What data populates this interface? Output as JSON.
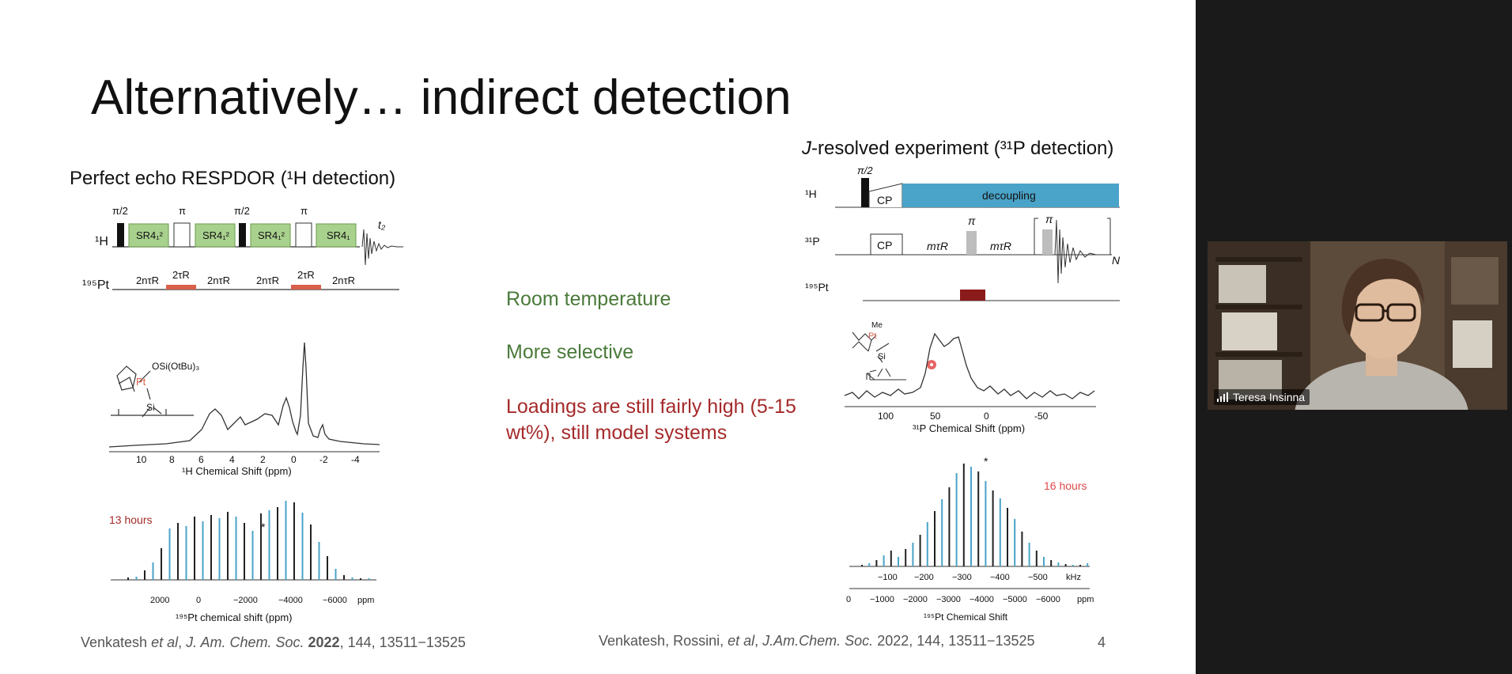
{
  "slide": {
    "title": "Alternatively… indirect detection",
    "left": {
      "heading": "Perfect echo RESPDOR (¹H detection)",
      "pulse_seq": {
        "labels_top": [
          "π/2",
          "π",
          "π/2",
          "π"
        ],
        "blocks": [
          "SR4₁²",
          "SR4₁²",
          "SR4₁²",
          "SR4₁"
        ],
        "t2": "t₂",
        "h_label": "¹H",
        "pt_label": "¹⁹⁵Pt",
        "pt_ticks": [
          "2nτR",
          "2τR",
          "2nτR",
          "2nτR",
          "2τR",
          "2nτR"
        ]
      },
      "h_spectrum": {
        "structure_label": "OSi(OtBu)₃",
        "pt": "Pt",
        "si": "Si",
        "ticks": [
          "10",
          "8",
          "6",
          "4",
          "2",
          "0",
          "-2",
          "-4"
        ],
        "xlabel": "¹H Chemical Shift (ppm)"
      },
      "pt_spectrum": {
        "hours": "13 hours",
        "star": "*",
        "ticks": [
          "2000",
          "0",
          "−2000",
          "−4000",
          "−6000",
          "ppm"
        ],
        "xlabel": "¹⁹⁵Pt chemical shift (ppm)"
      },
      "citation_pre": "Venkatesh ",
      "citation_etal": "et al",
      "citation_mid": ", ",
      "citation_journal": "J. Am. Chem. Soc.",
      "citation_year": "2022",
      "citation_post": ", 144, 13511−13525"
    },
    "middle": {
      "point1": "Room temperature",
      "point2": "More selective",
      "point3": "Loadings are still fairly high (5-15 wt%), still model systems"
    },
    "right": {
      "heading_j": "J",
      "heading_rest": "-resolved experiment (³¹P detection)",
      "pulse_seq": {
        "h_label": "¹H",
        "p_label": "³¹P",
        "pt_label": "¹⁹⁵Pt",
        "pi2": "π/2",
        "cp": "CP",
        "decoupling": "decoupling",
        "pi": "π",
        "mtr": "mτR",
        "n": "N"
      },
      "p_spectrum": {
        "me": "Me",
        "pt": "Pt",
        "si": "Si",
        "ticks": [
          "100",
          "50",
          "0",
          "-50"
        ],
        "xlabel": "³¹P Chemical Shift (ppm)"
      },
      "pt_spectrum": {
        "hours": "16 hours",
        "star": "*",
        "khz_ticks": [
          "−100",
          "−200",
          "−300",
          "−400",
          "−500",
          "kHz"
        ],
        "ppm_ticks": [
          "0",
          "−1000",
          "−2000",
          "−3000",
          "−4000",
          "−5000",
          "−6000",
          "ppm"
        ],
        "xlabel": "¹⁹⁵Pt Chemical Shift"
      },
      "citation_pre": "Venkatesh, Rossini, ",
      "citation_etal": "et al",
      "citation_mid": ", ",
      "citation_journal": "J.Am.Chem. Soc.",
      "citation_post": " 2022, 144, 13511−13525"
    },
    "page_number": "4"
  },
  "video": {
    "participant_name": "Teresa Insinna"
  },
  "colors": {
    "green_text": "#4a7a3a",
    "red_text": "#a52a2a",
    "decoupling_blue": "#4aa3c8",
    "sr4_green": "#a9d18e",
    "pt_pulse_red": "#d9604a",
    "pt_pulse_dark": "#8b1a1a"
  }
}
